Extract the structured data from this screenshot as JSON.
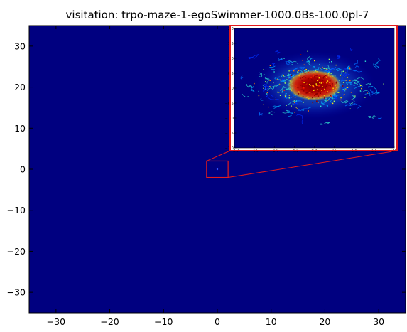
{
  "chart_data": {
    "type": "heatmap",
    "title": "visitation: trpo-maze-1-egoSwimmer-1000.0Bs-100.0pl-7",
    "xlabel": "",
    "ylabel": "",
    "xlim": [
      -35,
      35
    ],
    "ylim": [
      -35,
      35
    ],
    "xticks": [
      -30,
      -20,
      -10,
      0,
      10,
      20,
      30
    ],
    "yticks": [
      -30,
      -20,
      -10,
      0,
      10,
      20,
      30
    ],
    "xtick_labels": [
      "−30",
      "−20",
      "−10",
      "0",
      "10",
      "20",
      "30"
    ],
    "ytick_labels": [
      "−30",
      "−20",
      "−10",
      "0",
      "10",
      "20",
      "30"
    ],
    "grid": false,
    "colormap": "jet",
    "background_color": "#000080",
    "zoom_region": {
      "xlim": [
        -2,
        2
      ],
      "ylim": [
        -2,
        2
      ]
    },
    "highlight_color": "#e41a1c",
    "inset": {
      "type": "heatmap",
      "xlim": [
        -2,
        2
      ],
      "ylim": [
        -2,
        2
      ],
      "xticks": [
        -2.0,
        -1.5,
        -1.0,
        -0.5,
        0.0,
        0.5,
        1.0,
        1.5,
        2.0
      ],
      "yticks": [
        -2.0,
        -1.5,
        -1.0,
        -0.5,
        0.0,
        0.5,
        1.0,
        1.5,
        2.0
      ],
      "xtick_labels": [
        "−2.0",
        "−1.5",
        "−1.0",
        "−0.5",
        "0.0",
        "0.5",
        "1.0",
        "1.5",
        "2.0"
      ],
      "ytick_labels": [
        "−2.0",
        "−1.5",
        "−1.0",
        "−0.5",
        "0.0",
        "0.5",
        "1.0",
        "1.5",
        "2.0"
      ],
      "hot_center": [
        0.0,
        0.1
      ],
      "hot_spread": [
        0.55,
        0.4
      ],
      "cloud_extent": [
        1.8,
        1.2
      ]
    }
  }
}
